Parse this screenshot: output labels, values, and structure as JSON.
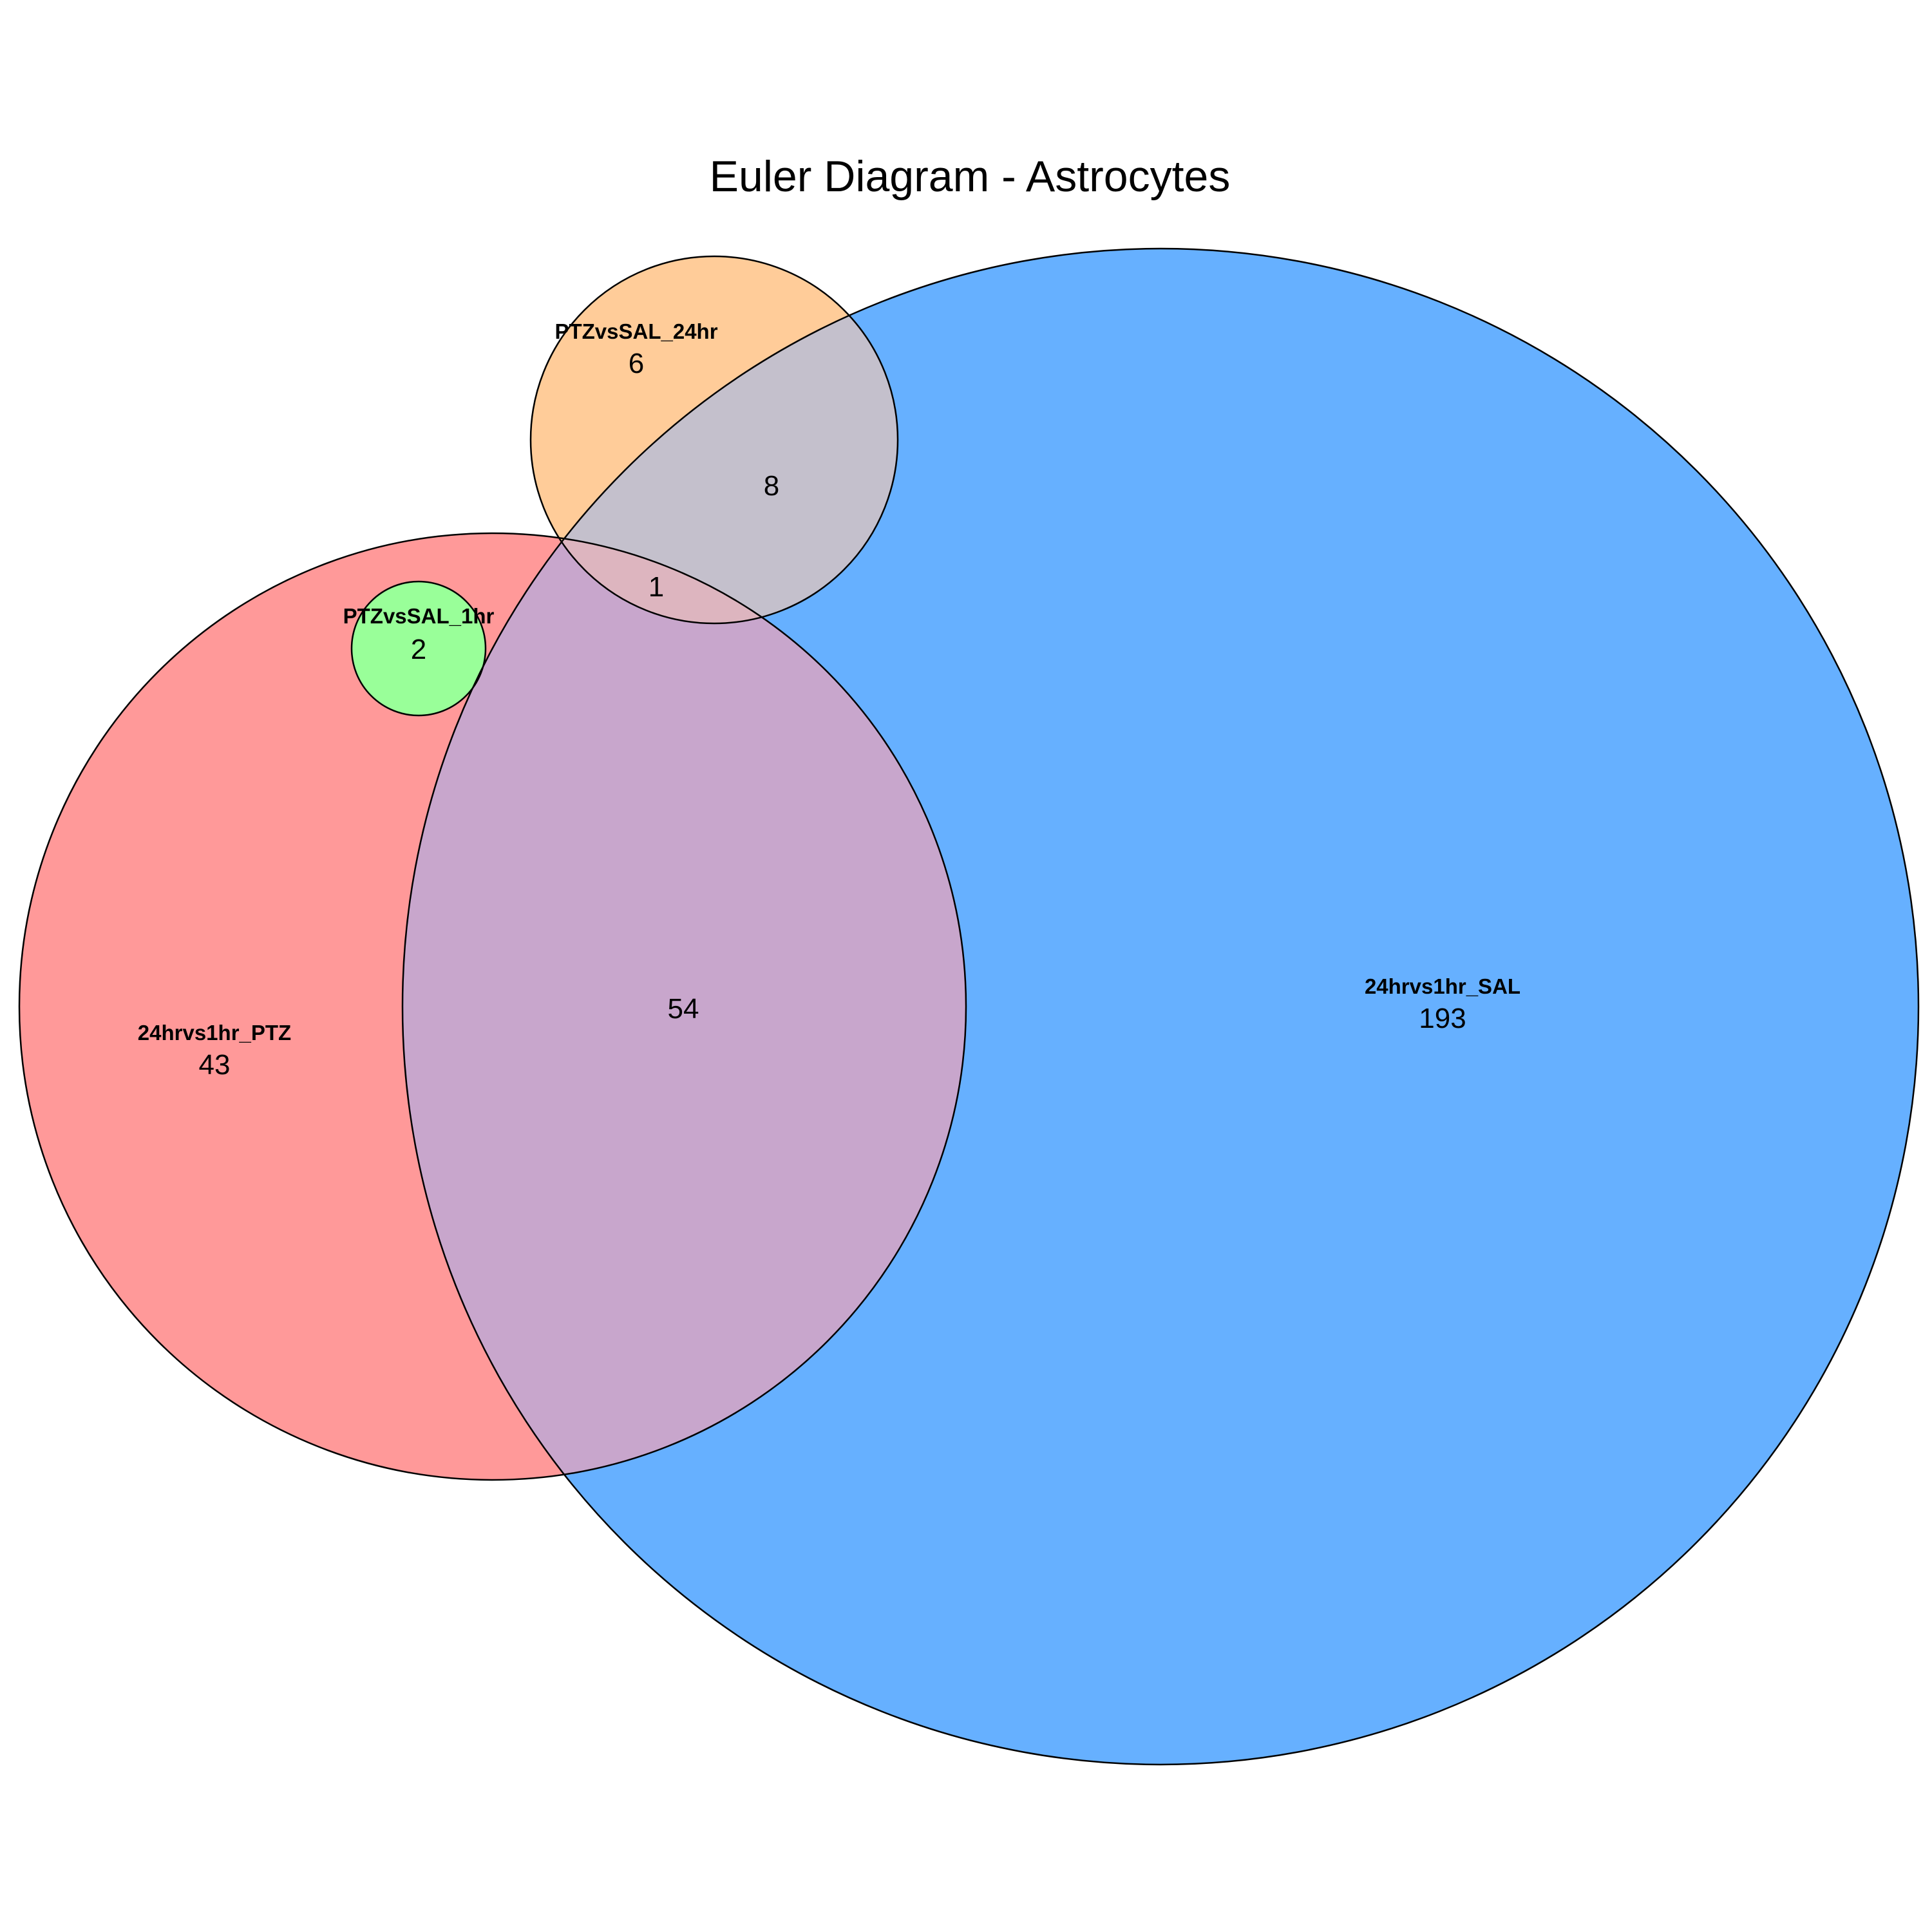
{
  "title": "Euler Diagram - Astrocytes",
  "sets": [
    {
      "id": "ptz",
      "name": "24hrvs1hr_PTZ",
      "count": "43",
      "color": "#ff9999"
    },
    {
      "id": "sal",
      "name": "24hrvs1hr_SAL",
      "count": "193",
      "color": "#66b0ff"
    },
    {
      "id": "s24",
      "name": "PTZvsSAL_24hr",
      "count": "6",
      "color": "#ffcc99"
    },
    {
      "id": "s1",
      "name": "PTZvsSAL_1hr",
      "count": "2",
      "color": "#99ff99"
    }
  ],
  "intersections": [
    {
      "sets": [
        "24hrvs1hr_PTZ",
        "24hrvs1hr_SAL"
      ],
      "count": "54",
      "color": "#c8a6cc"
    },
    {
      "sets": [
        "24hrvs1hr_SAL",
        "PTZvsSAL_24hr"
      ],
      "count": "8",
      "color": "#c4c0cc"
    },
    {
      "sets": [
        "24hrvs1hr_PTZ",
        "24hrvs1hr_SAL",
        "PTZvsSAL_24hr"
      ],
      "count": "1",
      "color": "#ddb5bf"
    }
  ]
}
